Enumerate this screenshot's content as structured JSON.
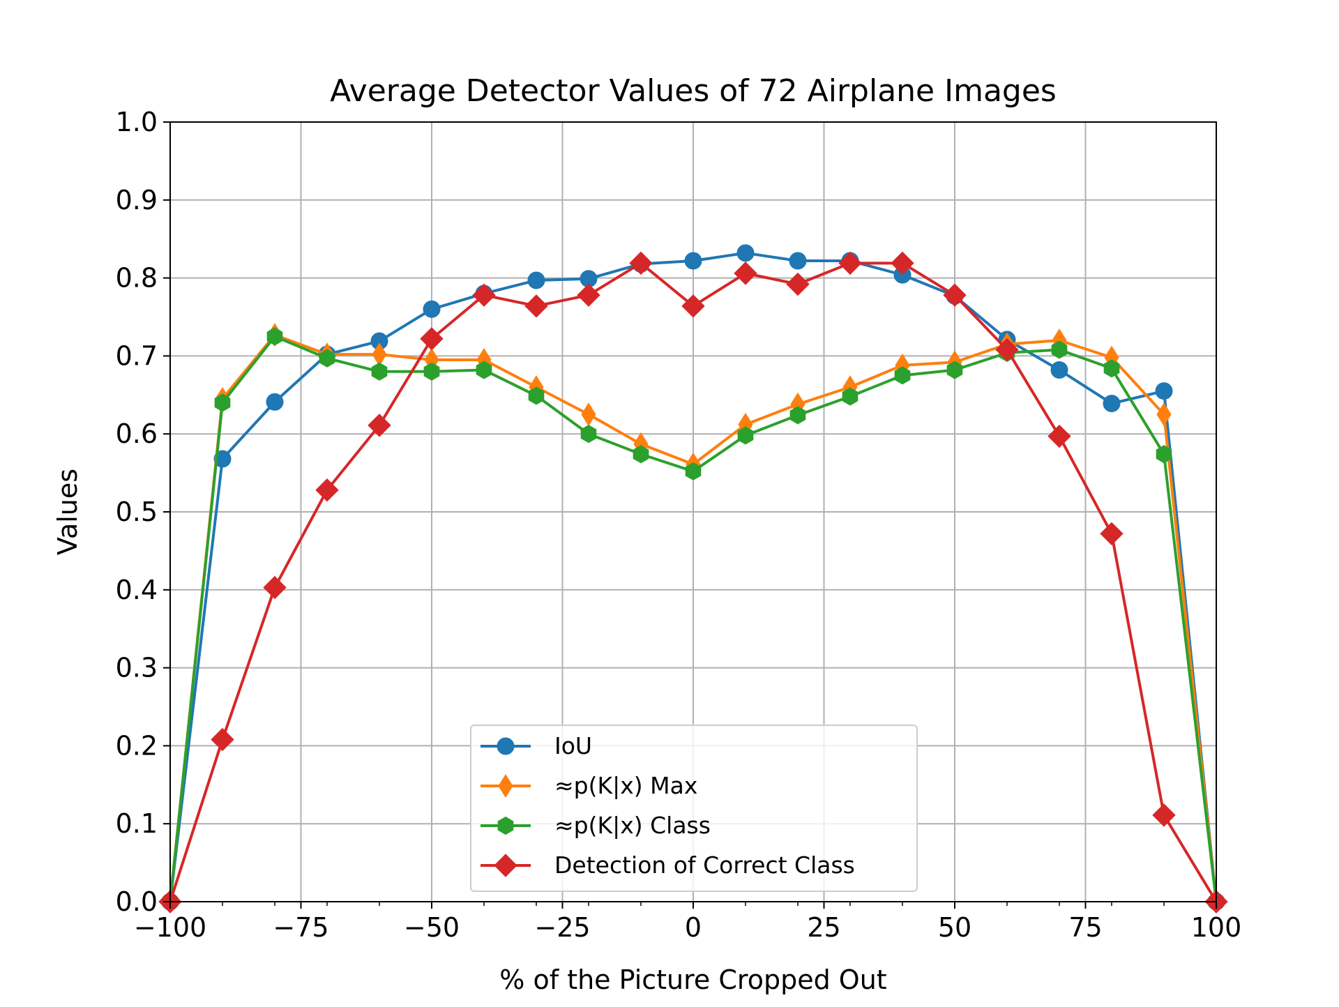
{
  "chart_data": {
    "type": "line",
    "title": "Average Detector Values of 72 Airplane Images",
    "xlabel": "% of the Picture Cropped Out",
    "ylabel": "Values",
    "xlim": [
      -100,
      100
    ],
    "ylim": [
      0.0,
      1.0
    ],
    "grid": true,
    "legend_position": "bottom-center",
    "x_ticks": [
      -100,
      -75,
      -50,
      -25,
      0,
      25,
      50,
      75,
      100
    ],
    "x_tick_labels": [
      "−100",
      "−75",
      "−50",
      "−25",
      "0",
      "25",
      "50",
      "75",
      "100"
    ],
    "x_minor_ticks": [
      -90,
      -80,
      -70,
      -60,
      -40,
      -30,
      -20,
      -10,
      10,
      20,
      30,
      40,
      60,
      70,
      80,
      90
    ],
    "y_ticks": [
      0.0,
      0.1,
      0.2,
      0.3,
      0.4,
      0.5,
      0.6,
      0.7,
      0.8,
      0.9,
      1.0
    ],
    "y_tick_labels": [
      "0.0",
      "0.1",
      "0.2",
      "0.3",
      "0.4",
      "0.5",
      "0.6",
      "0.7",
      "0.8",
      "0.9",
      "1.0"
    ],
    "x": [
      -100,
      -90,
      -80,
      -70,
      -60,
      -50,
      -40,
      -30,
      -20,
      -10,
      0,
      10,
      20,
      30,
      40,
      50,
      60,
      70,
      80,
      90,
      100
    ],
    "series": [
      {
        "name": "IoU",
        "color": "#1f77b4",
        "marker": "circle",
        "values": [
          0.0,
          0.568,
          0.641,
          0.702,
          0.719,
          0.76,
          0.78,
          0.797,
          0.799,
          0.818,
          0.822,
          0.832,
          0.822,
          0.822,
          0.804,
          0.777,
          0.721,
          0.682,
          0.639,
          0.655,
          0.0
        ]
      },
      {
        "name": "≈p(K|x) Max",
        "color": "#ff7f0e",
        "marker": "thin_diamond",
        "values": [
          0.0,
          0.645,
          0.727,
          0.702,
          0.702,
          0.695,
          0.695,
          0.66,
          0.625,
          0.587,
          0.561,
          0.612,
          0.638,
          0.66,
          0.688,
          0.692,
          0.715,
          0.72,
          0.698,
          0.625,
          0.0
        ]
      },
      {
        "name": "≈p(K|x) Class",
        "color": "#2ca02c",
        "marker": "hexagon",
        "values": [
          0.0,
          0.64,
          0.725,
          0.697,
          0.68,
          0.68,
          0.682,
          0.649,
          0.6,
          0.574,
          0.552,
          0.598,
          0.624,
          0.648,
          0.675,
          0.682,
          0.704,
          0.708,
          0.684,
          0.574,
          0.0
        ]
      },
      {
        "name": "Detection of Correct Class",
        "color": "#d62728",
        "marker": "diamond",
        "values": [
          0.0,
          0.208,
          0.403,
          0.528,
          0.611,
          0.722,
          0.778,
          0.764,
          0.778,
          0.819,
          0.764,
          0.806,
          0.792,
          0.819,
          0.819,
          0.778,
          0.708,
          0.597,
          0.472,
          0.111,
          0.0
        ]
      }
    ]
  }
}
